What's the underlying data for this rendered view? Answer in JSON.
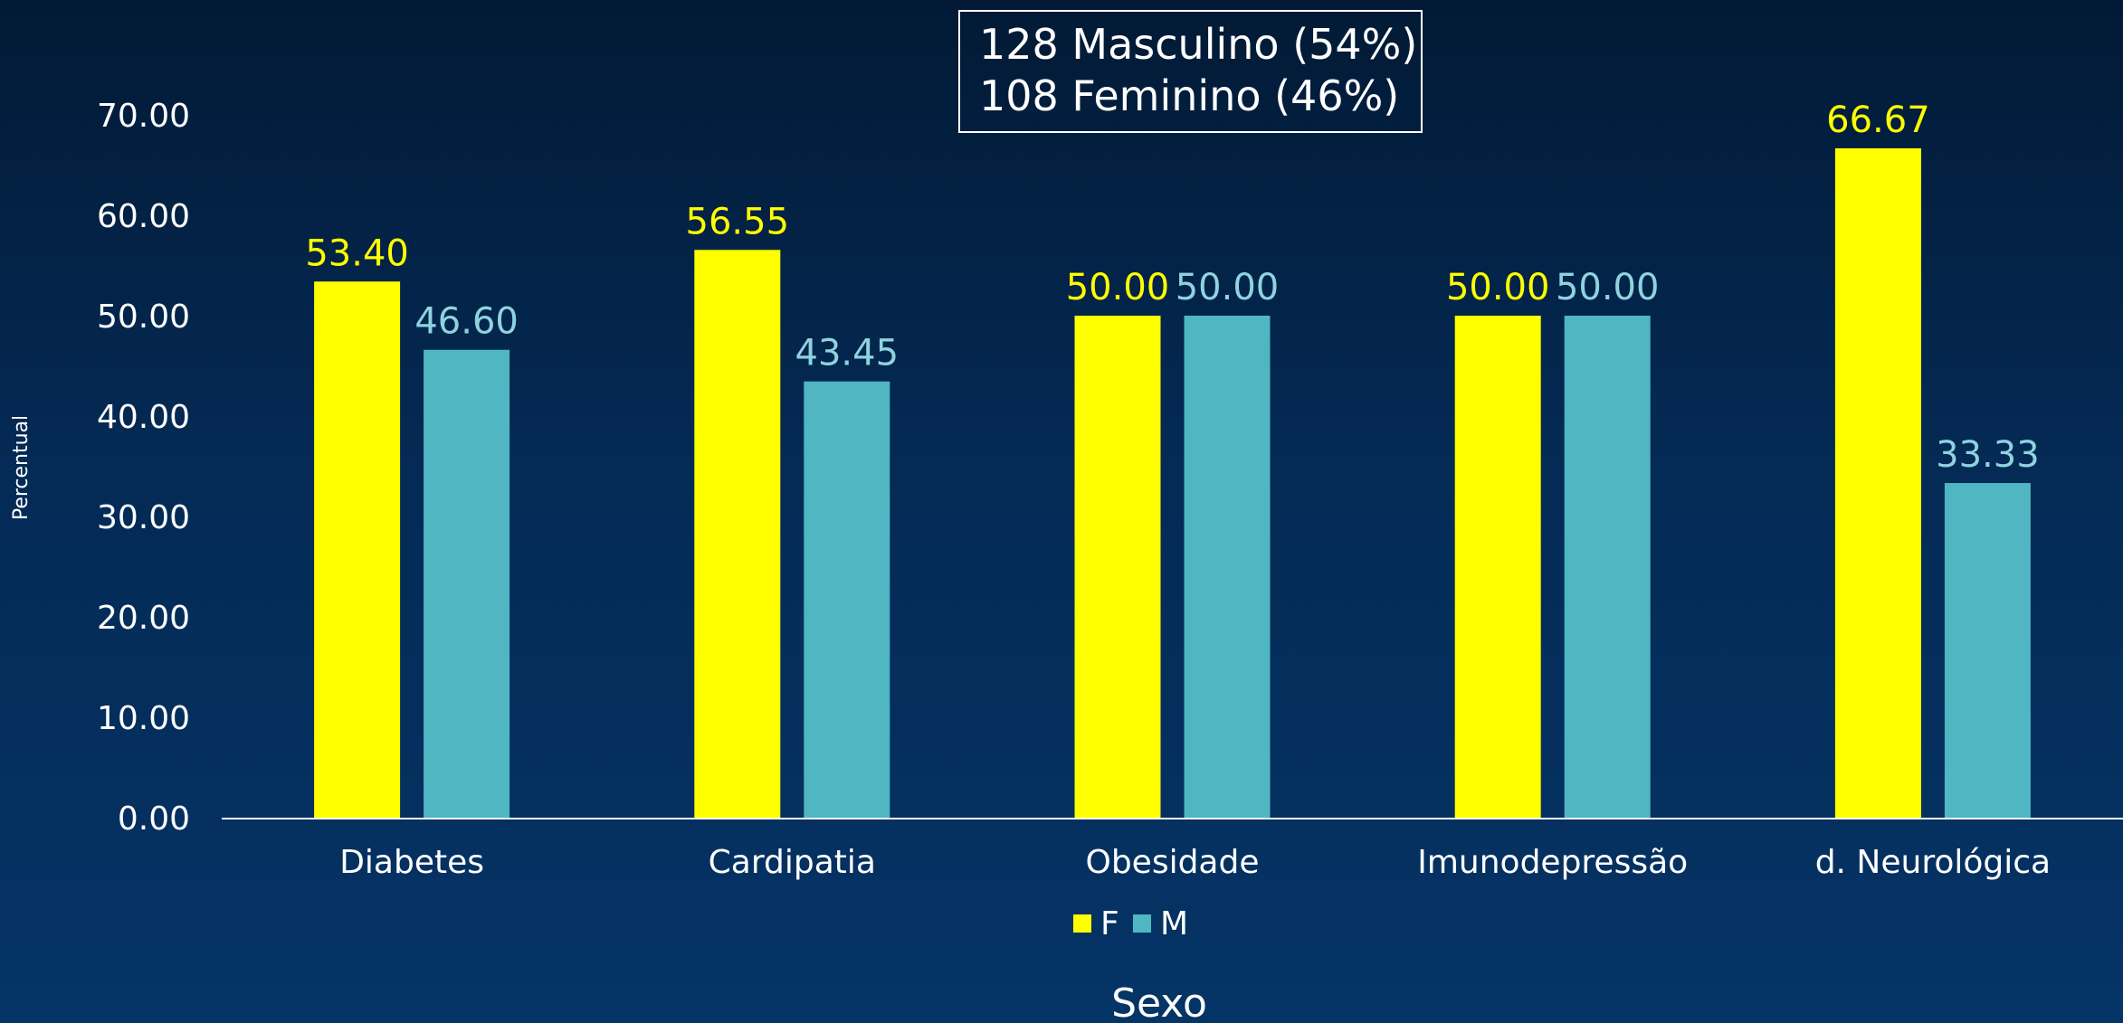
{
  "annotation": {
    "line1": "128 Masculino (54%)",
    "line2": "108 Feminino (46%)"
  },
  "chart_data": {
    "type": "bar",
    "title": "",
    "xlabel": "Sexo",
    "ylabel": "Percentual",
    "ylim": [
      0,
      70
    ],
    "yticks": [
      "0.00",
      "10.00",
      "20.00",
      "30.00",
      "40.00",
      "50.00",
      "60.00",
      "70.00"
    ],
    "categories": [
      "Diabetes",
      "Cardipatia",
      "Obesidade",
      "Imunodepressão",
      "d. Neurológica"
    ],
    "series": [
      {
        "name": "F",
        "color": "#ffff00",
        "labelColor": "#ffff00",
        "values": [
          53.4,
          56.55,
          50.0,
          50.0,
          66.67
        ]
      },
      {
        "name": "M",
        "color": "#4fb6c2",
        "labelColor": "#8fd3df",
        "values": [
          46.6,
          43.45,
          50.0,
          50.0,
          33.33
        ]
      }
    ],
    "grid": false,
    "legend": "bottom-center"
  }
}
